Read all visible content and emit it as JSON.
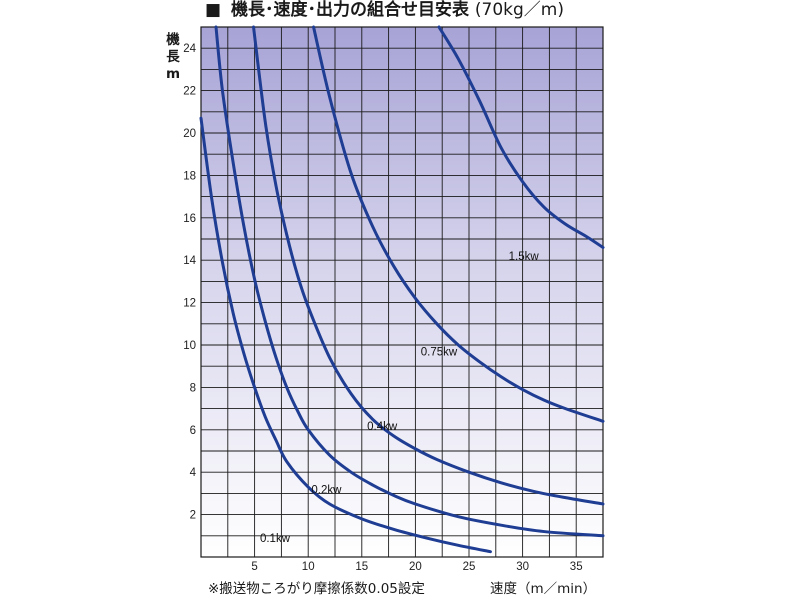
{
  "chart_data": {
    "type": "line",
    "title": "機長･速度･出力の組合せ目安表",
    "title_marker": "■",
    "title_unit": "(70kg／m)",
    "ylabel_lines": [
      "機",
      "長",
      "m"
    ],
    "xlabel": "速度（m／min）",
    "footnote": "※搬送物ころがり摩擦係数0.05設定",
    "xlim": [
      0,
      37.5
    ],
    "ylim": [
      0,
      25
    ],
    "x_grid_step": 2.5,
    "y_grid_step": 1,
    "x_ticks": [
      5,
      10,
      15,
      20,
      25,
      30,
      35
    ],
    "y_ticks": [
      2,
      4,
      6,
      8,
      10,
      12,
      14,
      16,
      18,
      20,
      22,
      24
    ],
    "grid": true,
    "background_gradient": {
      "top": "#a7a3d6",
      "bottom": "#ffffff"
    },
    "grid_color": "#1a1a1a",
    "line_color": "#1e3d93",
    "series": [
      {
        "name": "0.1kw",
        "x": [
          0,
          1,
          2,
          3,
          4,
          5,
          6,
          7,
          8,
          10,
          12,
          15,
          18,
          21,
          24,
          27
        ],
        "y": [
          20.7,
          16.9,
          13.9,
          11.5,
          9.6,
          8.0,
          6.6,
          5.5,
          4.5,
          3.3,
          2.5,
          1.8,
          1.3,
          0.9,
          0.55,
          0.25
        ]
      },
      {
        "name": "0.2kw",
        "x": [
          1.4,
          2,
          3,
          4,
          5,
          6,
          7,
          8,
          9,
          10,
          12,
          14,
          16,
          18,
          20,
          24,
          28,
          32,
          37.5
        ],
        "y": [
          25,
          22.0,
          18.6,
          15.6,
          13.1,
          11.1,
          9.4,
          8.0,
          6.9,
          6.0,
          4.8,
          4.0,
          3.4,
          2.9,
          2.5,
          1.9,
          1.5,
          1.2,
          1.0
        ]
      },
      {
        "name": "0.4kw",
        "x": [
          4.9,
          6,
          7,
          8,
          9,
          10,
          12,
          14,
          16,
          18,
          20,
          22,
          25,
          28,
          31,
          34,
          37.5
        ],
        "y": [
          25,
          20.5,
          17.5,
          15.2,
          13.3,
          11.8,
          9.4,
          7.7,
          6.5,
          5.7,
          5.1,
          4.6,
          4.0,
          3.5,
          3.1,
          2.8,
          2.5
        ]
      },
      {
        "name": "0.75kw",
        "x": [
          10.5,
          12,
          14,
          16,
          18,
          20,
          22,
          24,
          26,
          28,
          30,
          32,
          34,
          37.5
        ],
        "y": [
          25,
          21.7,
          18.1,
          15.6,
          13.7,
          12.2,
          11.0,
          10.0,
          9.2,
          8.5,
          7.9,
          7.4,
          7.0,
          6.4
        ]
      },
      {
        "name": "1.5kw",
        "x": [
          22.2,
          24,
          26,
          28,
          30,
          32,
          34,
          36,
          37.5
        ],
        "y": [
          25,
          23.5,
          21.5,
          19.3,
          17.7,
          16.5,
          15.7,
          15.1,
          14.6
        ]
      }
    ],
    "series_label_points": [
      {
        "x": 5.5,
        "y": 0.7
      },
      {
        "x": 10.3,
        "y": 3.0
      },
      {
        "x": 15.5,
        "y": 6.0
      },
      {
        "x": 20.5,
        "y": 9.5
      },
      {
        "x": 28.7,
        "y": 14.0
      }
    ]
  }
}
